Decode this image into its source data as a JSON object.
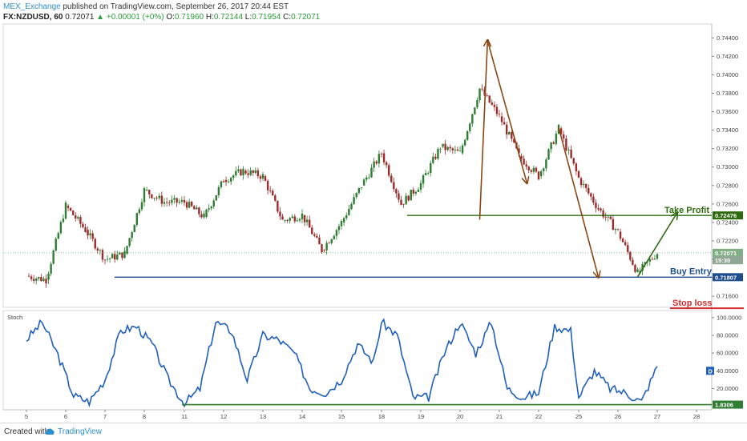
{
  "header": {
    "author": "MEX_Exchange",
    "published": "published on TradingView.com, September 26, 2017 20:44 EST",
    "symbol": "FX:NZDUSD, 60",
    "last": "0.72071",
    "change": "▲ +0.00001 (+0%)",
    "o_label": "O:",
    "o": "0.71960",
    "h_label": "H:",
    "h": "0.72144",
    "l_label": "L:",
    "l": "0.71954",
    "c_label": "C:",
    "c": "0.72071"
  },
  "footer": {
    "created": "Created with",
    "logo": "TradingView"
  },
  "colors": {
    "up": "#2e7d32",
    "down": "#9e2a2a",
    "support": "#1f4e8c",
    "take_profit": "#2e6b0f",
    "stop_loss": "#d32f2f",
    "arrow_brown": "#8b4513",
    "stoch": "#1f5fbf",
    "stoch_line": "#2e7d32"
  },
  "chart_data": [
    {
      "type": "line",
      "title": "FX:NZDUSD, 60",
      "y_ticks": [
        "0.74400",
        "0.74200",
        "0.74000",
        "0.73800",
        "0.73600",
        "0.73400",
        "0.73200",
        "0.73000",
        "0.72800",
        "0.72600",
        "0.72400",
        "0.72200",
        "0.72000",
        "0.71800",
        "0.71600"
      ],
      "ylim": [
        0.7148,
        0.7455
      ],
      "x_ticks": [
        "5",
        "6",
        "7",
        "8",
        "11",
        "12",
        "13",
        "14",
        "15",
        "18",
        "19",
        "20",
        "21",
        "22",
        "25",
        "26",
        "27",
        "28"
      ],
      "series": [
        {
          "x": [
            "5",
            "5.5",
            "6",
            "6.5",
            "7",
            "7.5",
            "8",
            "8.5",
            "11",
            "11.5",
            "12",
            "12.5",
            "13",
            "13.5",
            "14",
            "14.5",
            "15",
            "15.5",
            "18",
            "18.5",
            "19",
            "19.5",
            "20",
            "20.5",
            "21",
            "21.5",
            "22",
            "22.5",
            "25",
            "25.5",
            "26",
            "26.5",
            "27"
          ],
          "values": [
            0.7182,
            0.7178,
            0.7258,
            0.7232,
            0.72,
            0.7206,
            0.7275,
            0.7262,
            0.7262,
            0.7246,
            0.7286,
            0.7296,
            0.729,
            0.7242,
            0.7248,
            0.721,
            0.724,
            0.728,
            0.7315,
            0.726,
            0.7282,
            0.7322,
            0.7315,
            0.7385,
            0.7355,
            0.7312,
            0.729,
            0.7342,
            0.7288,
            0.7255,
            0.723,
            0.7185,
            0.7207
          ]
        }
      ],
      "levels": [
        {
          "label": "Take Profit",
          "value": 0.72476,
          "tag": "0.72476"
        },
        {
          "label": "Buy Entry",
          "value": 0.71807,
          "tag": "0.71807"
        },
        {
          "label": "Stop loss",
          "value": 0.7147
        }
      ],
      "price_tags": [
        {
          "value": 0.72071,
          "tag": "0.72071"
        },
        {
          "value": 0.7199,
          "tag": "15:30"
        }
      ],
      "annotations": [
        {
          "from": {
            "x": "20.5",
            "y": 0.7243
          },
          "to": {
            "x": "20.7",
            "y": 0.7437
          }
        },
        {
          "from": {
            "x": "20.7",
            "y": 0.7437
          },
          "to": {
            "x": "21.7",
            "y": 0.7283
          }
        },
        {
          "from": {
            "x": "22.5",
            "y": 0.7343
          },
          "to": {
            "x": "25.5",
            "y": 0.7181
          }
        },
        {
          "from": {
            "x": "26.5",
            "y": 0.7181
          },
          "to": {
            "x": "27.5",
            "y": 0.725
          }
        }
      ]
    },
    {
      "type": "line",
      "title": "Stoch",
      "y_ticks": [
        "100.0000",
        "80.0000",
        "60.0000",
        "40.0000",
        "20.0000"
      ],
      "ylim": [
        -4,
        108
      ],
      "level": {
        "value": 1.8306,
        "tag": "1.8306"
      },
      "last_tag": "D",
      "series": [
        {
          "x": [
            "5",
            "5.4",
            "5.8",
            "6.2",
            "6.6",
            "7",
            "7.4",
            "7.8",
            "8.2",
            "8.6",
            "11",
            "11.4",
            "11.8",
            "12.2",
            "12.6",
            "13",
            "13.4",
            "13.8",
            "14.2",
            "14.6",
            "15",
            "15.4",
            "15.8",
            "18",
            "18.4",
            "18.8",
            "19.2",
            "19.6",
            "20",
            "20.4",
            "20.8",
            "21.2",
            "21.6",
            "22",
            "22.4",
            "22.8",
            "25",
            "25.4",
            "25.8",
            "26.2",
            "26.6",
            "27"
          ],
          "values": [
            75,
            95,
            58,
            12,
            5,
            30,
            85,
            90,
            70,
            30,
            3,
            20,
            95,
            85,
            30,
            80,
            75,
            60,
            20,
            15,
            30,
            70,
            50,
            95,
            80,
            10,
            10,
            60,
            95,
            60,
            95,
            20,
            10,
            15,
            90,
            85,
            10,
            40,
            20,
            15,
            5,
            45
          ]
        }
      ]
    }
  ]
}
